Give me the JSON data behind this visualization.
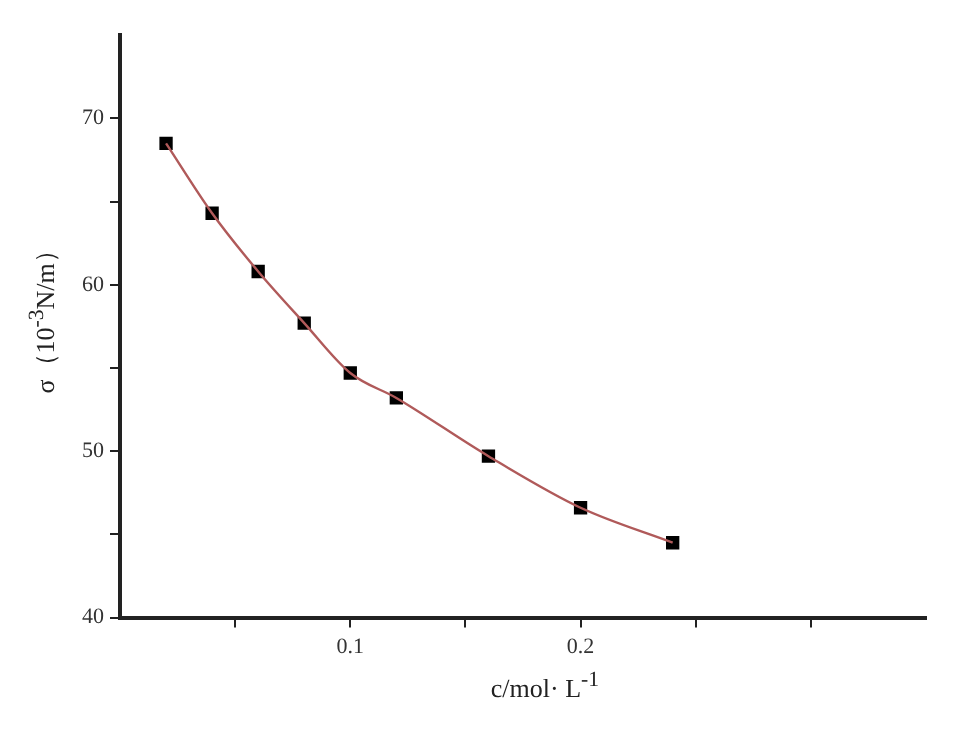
{
  "chart_data": {
    "type": "scatter",
    "xlabel": "c/mol· L$^{-1}$",
    "ylabel": "σ（10$^{-3}$N/m）",
    "xlim": [
      0,
      0.35
    ],
    "xticks": [
      {
        "value": 0.05,
        "label": null
      },
      0.1,
      {
        "value": 0.15,
        "label": null
      },
      0.2,
      {
        "value": 0.25,
        "label": null
      },
      {
        "value": 0.3,
        "label": null
      }
    ],
    "ylim": [
      40,
      75
    ],
    "yticks": [
      40,
      {
        "value": 45,
        "label": null
      },
      50,
      {
        "value": 55,
        "label": null
      },
      60,
      {
        "value": 65,
        "label": null
      },
      70
    ],
    "grid": false,
    "legend": false,
    "series": [
      {
        "type": "line",
        "color": "#b05a5a",
        "marker": "none",
        "line_style": "solid",
        "x": [
          0.02,
          0.04,
          0.06,
          0.08,
          0.1,
          0.12,
          0.16,
          0.2,
          0.24
        ],
        "values": [
          68.5,
          64.3,
          60.8,
          57.7,
          54.7,
          53.2,
          49.7,
          46.6,
          44.5
        ]
      },
      {
        "color": "#000000",
        "marker": "square",
        "x": [
          0.02,
          0.04,
          0.06,
          0.08,
          0.1,
          0.12,
          0.16,
          0.2,
          0.24
        ],
        "values": [
          68.5,
          64.3,
          60.8,
          57.7,
          54.7,
          53.2,
          49.7,
          46.6,
          44.5
        ]
      }
    ]
  }
}
